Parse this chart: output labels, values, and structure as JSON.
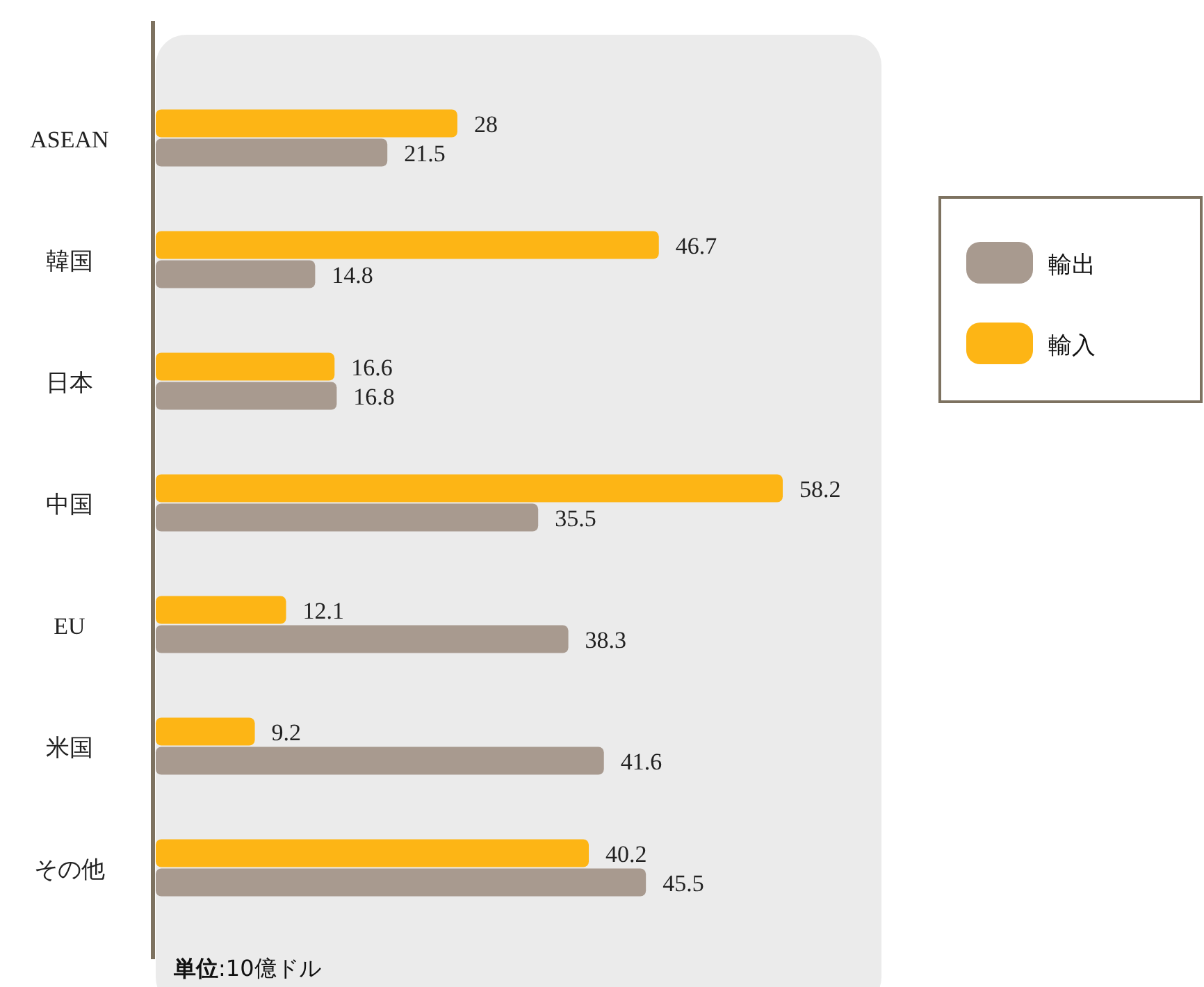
{
  "chart_data": {
    "type": "bar",
    "orientation": "horizontal",
    "categories": [
      "ASEAN",
      "韓国",
      "日本",
      "中国",
      "EU",
      "米国",
      "その他"
    ],
    "series": [
      {
        "name": "輸出",
        "color": "#a89a8f",
        "values": [
          21.5,
          14.8,
          16.8,
          35.5,
          38.3,
          41.6,
          45.5
        ]
      },
      {
        "name": "輸入",
        "color": "#fdb515",
        "values": [
          28,
          46.7,
          16.6,
          58.2,
          12.1,
          9.2,
          40.2
        ]
      }
    ],
    "data_labels": true,
    "legend": "right",
    "annotations": [
      "**単位**:10億ドル"
    ]
  }
}
